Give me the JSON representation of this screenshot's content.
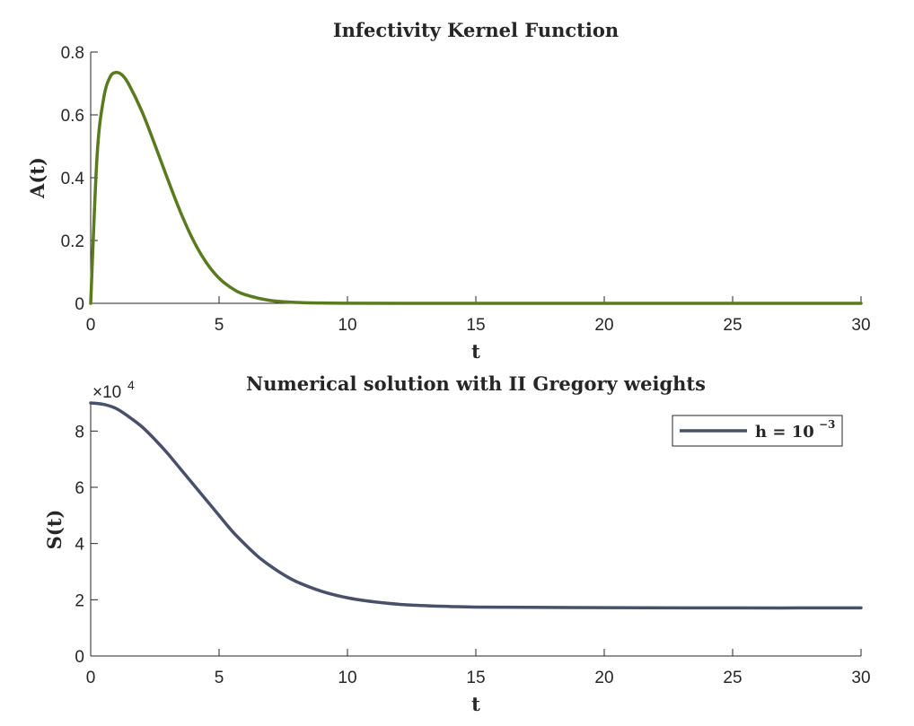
{
  "chart_data": [
    {
      "type": "line",
      "title": "Infectivity Kernel Function",
      "xlabel": "t",
      "ylabel": "A(t)",
      "xlim": [
        0,
        30
      ],
      "ylim": [
        0,
        0.8
      ],
      "xticks": [
        "0",
        "5",
        "10",
        "15",
        "20",
        "25",
        "30"
      ],
      "yticks": [
        "0",
        "0.2",
        "0.4",
        "0.6",
        "0.8"
      ],
      "grid": false,
      "series": [
        {
          "color": "#5a7a1e",
          "x": [
            0,
            0.25,
            0.5,
            0.75,
            1.0,
            1.25,
            1.5,
            2.0,
            2.5,
            3.0,
            3.5,
            4.0,
            4.5,
            5.0,
            5.5,
            6.0,
            7.0,
            8.0,
            9.0,
            10.0,
            12.0,
            15.0,
            20.0,
            25.0,
            30.0
          ],
          "y": [
            0,
            0.47,
            0.65,
            0.72,
            0.735,
            0.725,
            0.695,
            0.61,
            0.505,
            0.395,
            0.29,
            0.2,
            0.13,
            0.08,
            0.048,
            0.028,
            0.009,
            0.003,
            0.001,
            0.0003,
            0,
            0,
            0,
            0,
            0
          ]
        }
      ]
    },
    {
      "type": "line",
      "title": "Numerical solution with II Gregory weights",
      "xlabel": "t",
      "ylabel": "S(t)",
      "y_multiplier": "×10",
      "y_multiplier_exp": "4",
      "xlim": [
        0,
        30
      ],
      "ylim": [
        0,
        9
      ],
      "xticks": [
        "0",
        "5",
        "10",
        "15",
        "20",
        "25",
        "30"
      ],
      "yticks": [
        "0",
        "2",
        "4",
        "6",
        "8"
      ],
      "grid": false,
      "legend": {
        "position": "top-right",
        "label": "h = 10",
        "label_exp": "−3"
      },
      "series": [
        {
          "name": "h = 10^-3",
          "color": "#48506a",
          "x": [
            0,
            0.5,
            1.0,
            1.5,
            2.0,
            2.5,
            3.0,
            3.5,
            4.0,
            4.5,
            5.0,
            5.5,
            6.0,
            6.5,
            7.0,
            7.5,
            8.0,
            9.0,
            10.0,
            11.0,
            12.0,
            13.0,
            14.0,
            15.0,
            17.0,
            20.0,
            25.0,
            30.0
          ],
          "y": [
            9.0,
            8.95,
            8.8,
            8.5,
            8.15,
            7.7,
            7.2,
            6.65,
            6.1,
            5.55,
            5.0,
            4.45,
            3.98,
            3.55,
            3.2,
            2.9,
            2.65,
            2.3,
            2.07,
            1.93,
            1.84,
            1.79,
            1.76,
            1.74,
            1.73,
            1.72,
            1.71,
            1.71
          ]
        }
      ]
    }
  ]
}
